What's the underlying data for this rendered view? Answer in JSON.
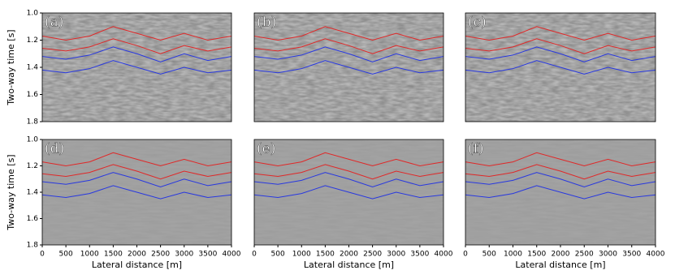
{
  "chart_data": [
    {
      "type": "image",
      "label": "(a)",
      "ylabel": "Two-way time [s]",
      "xlim": [
        0,
        4000
      ],
      "ylim": [
        1.8,
        1.0
      ],
      "yticks": [
        {
          "value": 1.0,
          "label": "1.0"
        },
        1.2,
        1.4,
        1.6,
        1.8
      ],
      "x": [
        0,
        500,
        1000,
        1500,
        2000,
        2500,
        3000,
        3500,
        4000
      ],
      "series": [
        {
          "color": "#e02828",
          "values": [
            1.17,
            1.2,
            1.17,
            1.1,
            1.15,
            1.2,
            1.15,
            1.2,
            1.17
          ]
        },
        {
          "color": "#e02828",
          "values": [
            1.26,
            1.28,
            1.25,
            1.19,
            1.24,
            1.3,
            1.24,
            1.28,
            1.25
          ]
        },
        {
          "color": "#2838e0",
          "values": [
            1.32,
            1.34,
            1.31,
            1.25,
            1.3,
            1.36,
            1.3,
            1.35,
            1.32
          ]
        },
        {
          "color": "#2838e0",
          "values": [
            1.42,
            1.44,
            1.41,
            1.35,
            1.4,
            1.45,
            1.4,
            1.44,
            1.42
          ]
        }
      ]
    },
    {
      "type": "image",
      "label": "(b)",
      "xlim": [
        0,
        4000
      ],
      "ylim": [
        1.8,
        1.0
      ],
      "x": [
        0,
        500,
        1000,
        1500,
        2000,
        2500,
        3000,
        3500,
        4000
      ],
      "series": [
        {
          "color": "#e02828",
          "values": [
            1.17,
            1.2,
            1.17,
            1.1,
            1.15,
            1.2,
            1.15,
            1.2,
            1.17
          ]
        },
        {
          "color": "#e02828",
          "values": [
            1.26,
            1.28,
            1.25,
            1.19,
            1.24,
            1.3,
            1.24,
            1.28,
            1.25
          ]
        },
        {
          "color": "#2838e0",
          "values": [
            1.32,
            1.34,
            1.31,
            1.25,
            1.3,
            1.36,
            1.3,
            1.35,
            1.32
          ]
        },
        {
          "color": "#2838e0",
          "values": [
            1.42,
            1.44,
            1.41,
            1.35,
            1.4,
            1.45,
            1.4,
            1.44,
            1.42
          ]
        }
      ]
    },
    {
      "type": "image",
      "label": "(c)",
      "xlim": [
        0,
        4000
      ],
      "ylim": [
        1.8,
        1.0
      ],
      "x": [
        0,
        500,
        1000,
        1500,
        2000,
        2500,
        3000,
        3500,
        4000
      ],
      "series": [
        {
          "color": "#e02828",
          "values": [
            1.17,
            1.2,
            1.17,
            1.1,
            1.15,
            1.2,
            1.15,
            1.2,
            1.17
          ]
        },
        {
          "color": "#e02828",
          "values": [
            1.26,
            1.28,
            1.25,
            1.19,
            1.24,
            1.3,
            1.24,
            1.28,
            1.25
          ]
        },
        {
          "color": "#2838e0",
          "values": [
            1.32,
            1.34,
            1.31,
            1.25,
            1.3,
            1.36,
            1.3,
            1.35,
            1.32
          ]
        },
        {
          "color": "#2838e0",
          "values": [
            1.42,
            1.44,
            1.41,
            1.35,
            1.4,
            1.45,
            1.4,
            1.44,
            1.42
          ]
        }
      ]
    },
    {
      "type": "image",
      "label": "(d)",
      "ylabel": "Two-way time [s]",
      "xlabel": "Lateral distance [m]",
      "xlim": [
        0,
        4000
      ],
      "ylim": [
        1.8,
        1.0
      ],
      "xticks": [
        0,
        500,
        1000,
        1500,
        2000,
        2500,
        3000,
        3500,
        4000
      ],
      "yticks": [
        {
          "value": 1.0,
          "label": "1.0"
        },
        1.2,
        1.4,
        1.6,
        1.8
      ],
      "x": [
        0,
        500,
        1000,
        1500,
        2000,
        2500,
        3000,
        3500,
        4000
      ],
      "series": [
        {
          "color": "#e02828",
          "values": [
            1.17,
            1.2,
            1.17,
            1.1,
            1.15,
            1.2,
            1.15,
            1.2,
            1.17
          ]
        },
        {
          "color": "#e02828",
          "values": [
            1.26,
            1.28,
            1.25,
            1.19,
            1.24,
            1.3,
            1.24,
            1.28,
            1.25
          ]
        },
        {
          "color": "#2838e0",
          "values": [
            1.32,
            1.34,
            1.31,
            1.25,
            1.3,
            1.36,
            1.3,
            1.35,
            1.32
          ]
        },
        {
          "color": "#2838e0",
          "values": [
            1.42,
            1.44,
            1.41,
            1.35,
            1.4,
            1.45,
            1.4,
            1.44,
            1.42
          ]
        }
      ]
    },
    {
      "type": "image",
      "label": "(e)",
      "xlabel": "Lateral distance [m]",
      "xlim": [
        0,
        4000
      ],
      "ylim": [
        1.8,
        1.0
      ],
      "xticks": [
        0,
        500,
        1000,
        1500,
        2000,
        2500,
        3000,
        3500,
        4000
      ],
      "x": [
        0,
        500,
        1000,
        1500,
        2000,
        2500,
        3000,
        3500,
        4000
      ],
      "series": [
        {
          "color": "#e02828",
          "values": [
            1.17,
            1.2,
            1.17,
            1.1,
            1.15,
            1.2,
            1.15,
            1.2,
            1.17
          ]
        },
        {
          "color": "#e02828",
          "values": [
            1.26,
            1.28,
            1.25,
            1.19,
            1.24,
            1.3,
            1.24,
            1.28,
            1.25
          ]
        },
        {
          "color": "#2838e0",
          "values": [
            1.32,
            1.34,
            1.31,
            1.25,
            1.3,
            1.36,
            1.3,
            1.35,
            1.32
          ]
        },
        {
          "color": "#2838e0",
          "values": [
            1.42,
            1.44,
            1.41,
            1.35,
            1.4,
            1.45,
            1.4,
            1.44,
            1.42
          ]
        }
      ]
    },
    {
      "type": "image",
      "label": "(f)",
      "xlabel": "Lateral distance [m]",
      "xlim": [
        0,
        4000
      ],
      "ylim": [
        1.8,
        1.0
      ],
      "xticks": [
        0,
        500,
        1000,
        1500,
        2000,
        2500,
        3000,
        3500,
        4000
      ],
      "x": [
        0,
        500,
        1000,
        1500,
        2000,
        2500,
        3000,
        3500,
        4000
      ],
      "series": [
        {
          "color": "#e02828",
          "values": [
            1.17,
            1.2,
            1.17,
            1.1,
            1.15,
            1.2,
            1.15,
            1.2,
            1.17
          ]
        },
        {
          "color": "#e02828",
          "values": [
            1.26,
            1.28,
            1.25,
            1.19,
            1.24,
            1.3,
            1.24,
            1.28,
            1.25
          ]
        },
        {
          "color": "#2838e0",
          "values": [
            1.32,
            1.34,
            1.31,
            1.25,
            1.3,
            1.36,
            1.3,
            1.35,
            1.32
          ]
        },
        {
          "color": "#2838e0",
          "values": [
            1.42,
            1.44,
            1.41,
            1.35,
            1.4,
            1.45,
            1.4,
            1.44,
            1.42
          ]
        }
      ]
    }
  ]
}
